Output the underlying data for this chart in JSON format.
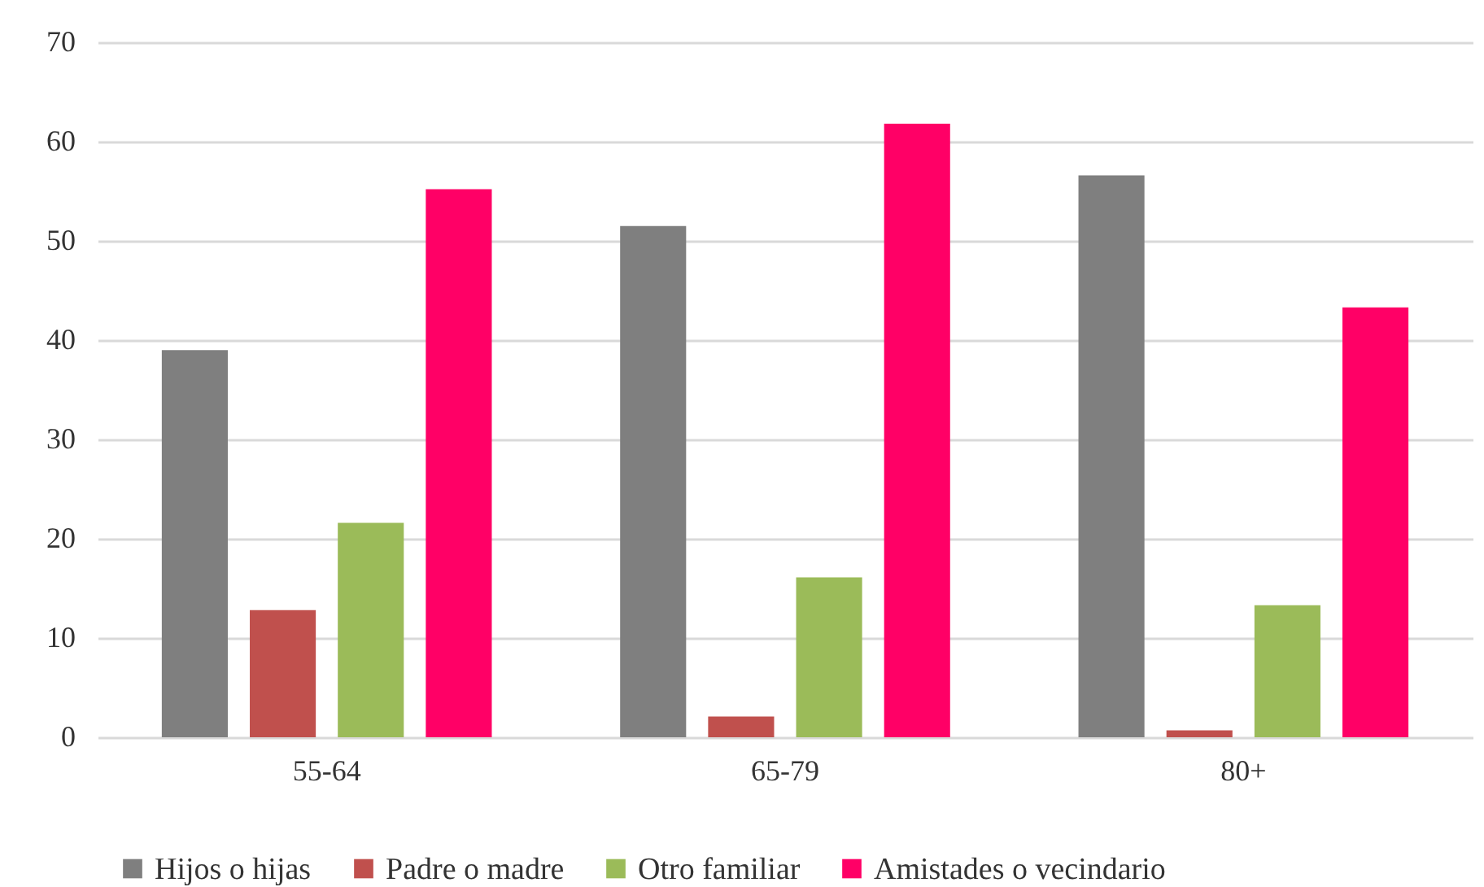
{
  "chart_data": {
    "type": "bar",
    "categories": [
      "55-64",
      "65-79",
      "80+"
    ],
    "series": [
      {
        "name": "Hijos o hijas",
        "color": "#7f7f7f",
        "values": [
          39.0,
          51.5,
          56.6
        ]
      },
      {
        "name": "Padre o madre",
        "color": "#c0504d",
        "values": [
          12.8,
          2.1,
          0.7
        ]
      },
      {
        "name": "Otro familiar",
        "color": "#9bbb59",
        "values": [
          21.6,
          16.1,
          13.3
        ]
      },
      {
        "name": "Amistades o vecindario",
        "color": "#ff0066",
        "values": [
          55.2,
          61.8,
          43.3
        ]
      }
    ],
    "ylim": [
      0,
      70
    ],
    "yticks": [
      0,
      10,
      20,
      30,
      40,
      50,
      60,
      70
    ],
    "grid": "y",
    "legend": "bottom"
  }
}
